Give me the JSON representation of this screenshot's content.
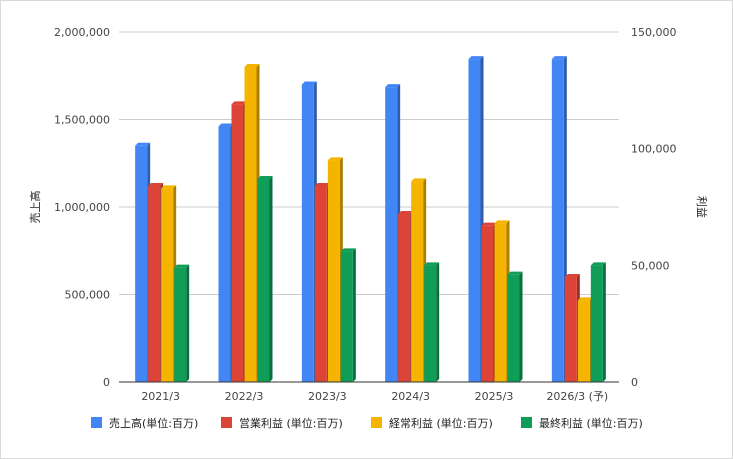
{
  "chart_data": {
    "type": "bar",
    "categories": [
      "2021/3",
      "2022/3",
      "2023/3",
      "2024/3",
      "2025/3",
      "2026/3 (予)"
    ],
    "series": [
      {
        "name": "売上高(単位:百万)",
        "axis": "left",
        "color": "#4285f4",
        "values": [
          1350000,
          1460000,
          1700000,
          1685000,
          1845000,
          1845000
        ]
      },
      {
        "name": "営業利益 (単位:百万)",
        "axis": "right",
        "color": "#db4437",
        "values": [
          84000,
          119000,
          84000,
          72000,
          67000,
          45000
        ]
      },
      {
        "name": "経常利益 (単位:百万)",
        "axis": "right",
        "color": "#f4b400",
        "values": [
          83000,
          135000,
          95000,
          86000,
          68000,
          35000
        ]
      },
      {
        "name": "最終利益 (単位:百万)",
        "axis": "right",
        "color": "#0f9d58",
        "values": [
          49000,
          87000,
          56000,
          50000,
          46000,
          50000
        ]
      }
    ],
    "ylabel": "売上高",
    "y2label": "利益",
    "ylim": [
      0,
      2000000
    ],
    "y2lim": [
      0,
      150000
    ],
    "yticks": [
      "0",
      "500,000",
      "1,000,000",
      "1,500,000",
      "2,000,000"
    ],
    "y2ticks": [
      "0",
      "50,000",
      "100,000",
      "150,000"
    ],
    "grid": true,
    "legend": "bottom"
  }
}
